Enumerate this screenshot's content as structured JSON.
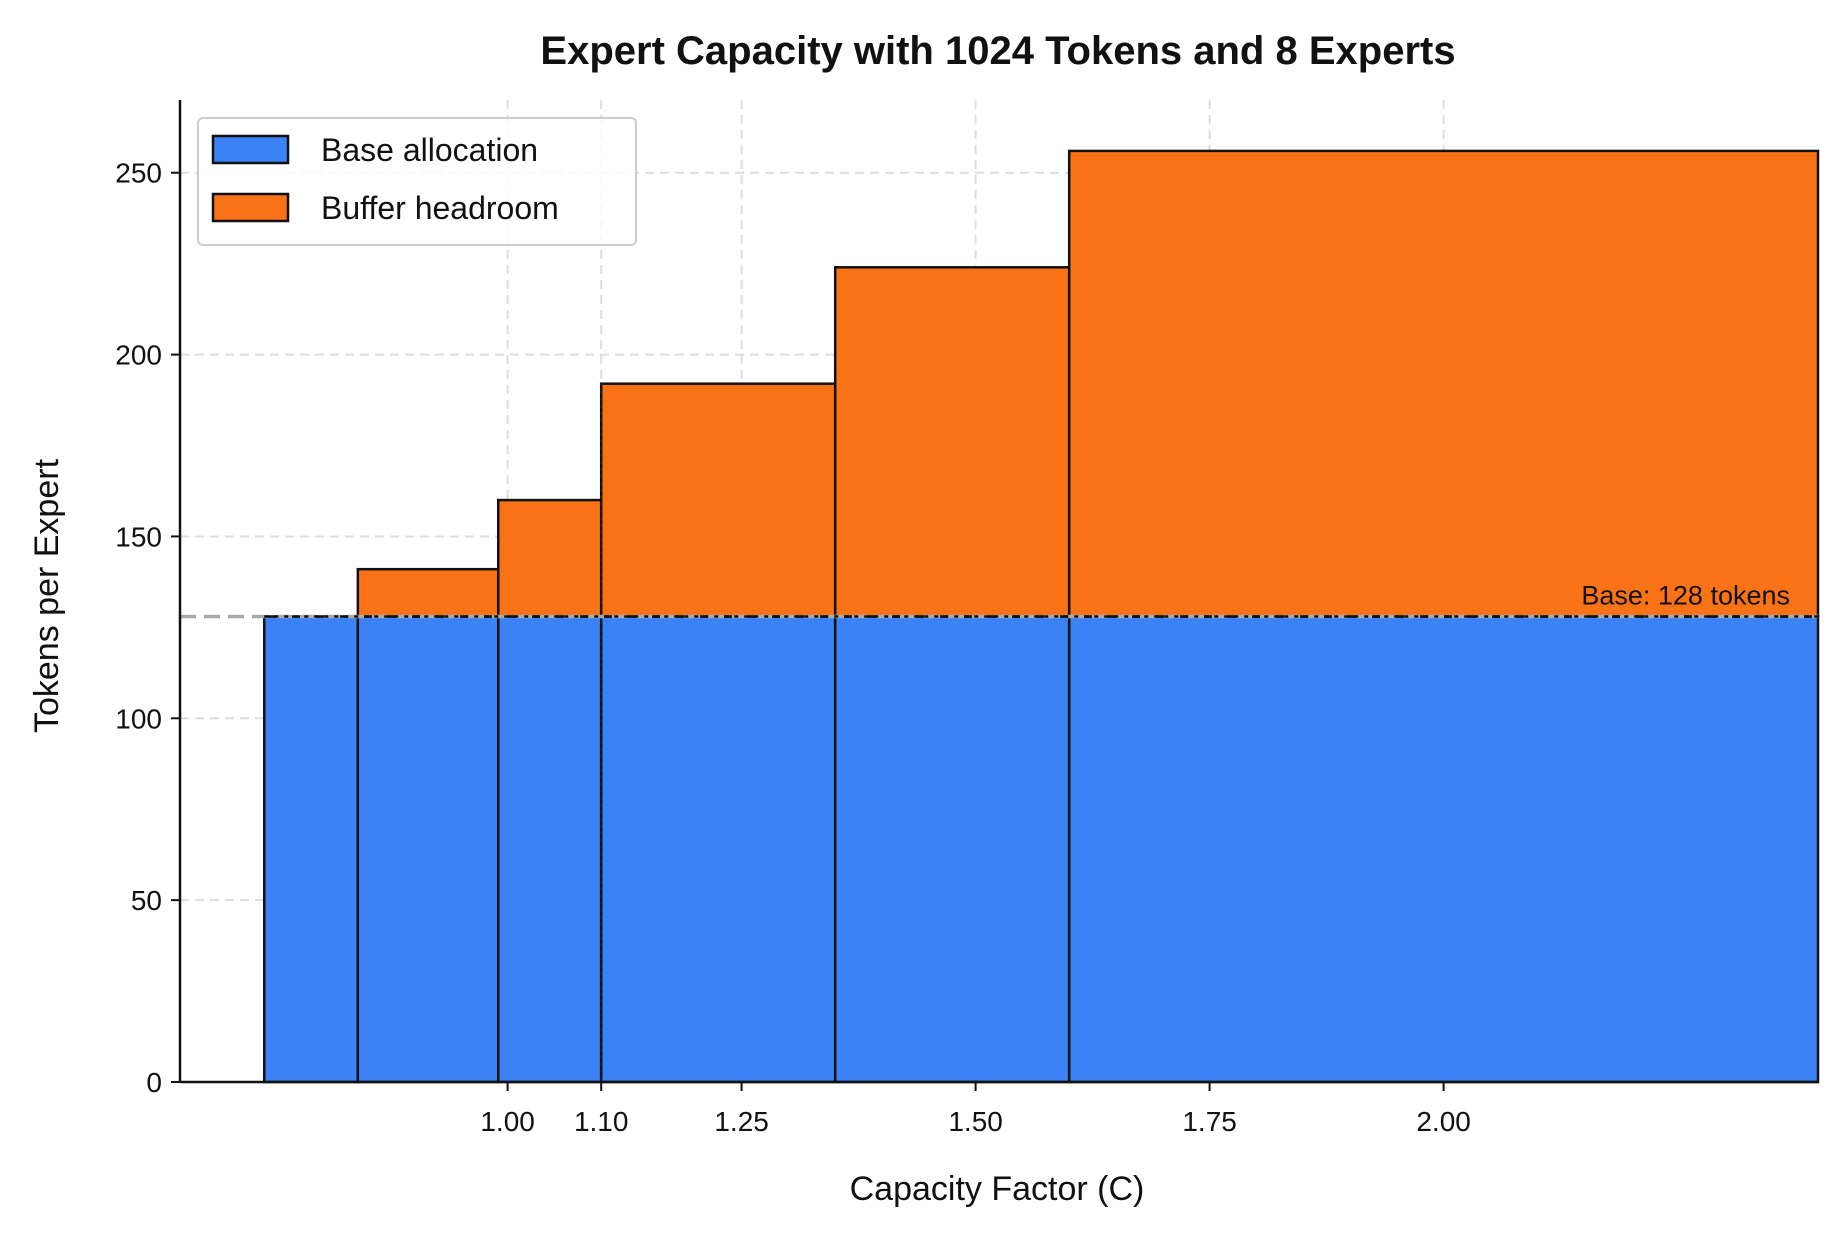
{
  "chart_data": {
    "type": "bar",
    "title": "Expert Capacity with 1024 Tokens and 8 Experts",
    "xlabel": "Capacity Factor (C)",
    "ylabel": "Tokens per Expert",
    "xlim": [
      0.65,
      2.4
    ],
    "ylim": [
      0,
      270
    ],
    "x_ticks": [
      1.0,
      1.1,
      1.25,
      1.5,
      1.75,
      2.0
    ],
    "x_tick_labels": [
      "1.00",
      "1.10",
      "1.25",
      "1.50",
      "1.75",
      "2.00"
    ],
    "y_ticks": [
      0,
      50,
      100,
      150,
      200,
      250
    ],
    "grid": true,
    "legend_position": "top-left",
    "bar_edges": [
      0.74,
      0.84,
      0.99,
      1.1,
      1.35,
      1.6,
      2.4
    ],
    "categories": [
      "1.00",
      "1.10",
      "1.25",
      "1.50",
      "1.75",
      "2.00"
    ],
    "series": [
      {
        "name": "Base allocation",
        "color": "#3b82f6",
        "values": [
          128,
          128,
          128,
          128,
          128,
          128
        ]
      },
      {
        "name": "Buffer headroom",
        "color": "#f97316",
        "values": [
          0,
          13,
          32,
          64,
          96,
          128
        ]
      }
    ],
    "reference_line": {
      "y": 128,
      "label": "Base: 128 tokens",
      "color": "#aaaaaa"
    }
  }
}
